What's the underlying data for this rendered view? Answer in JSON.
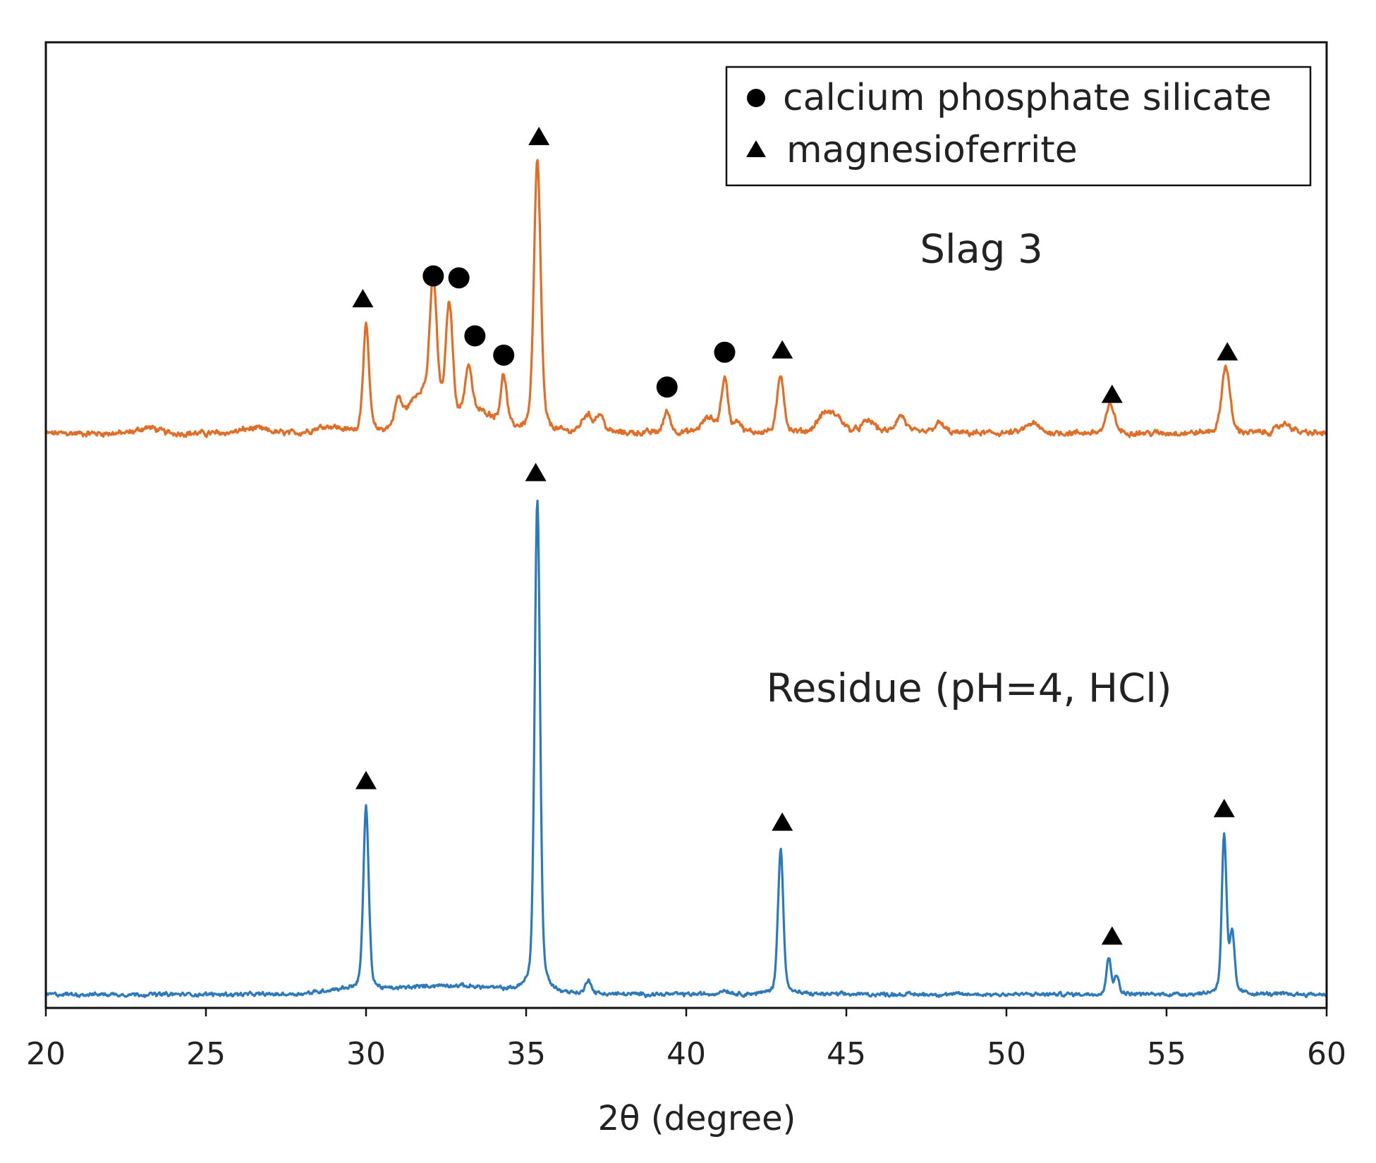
{
  "chart_data": {
    "type": "line",
    "title": "",
    "xlabel": "2θ (degree)",
    "ylabel": "",
    "xlim": [
      20,
      60
    ],
    "ylim": [
      0,
      100
    ],
    "grid": false,
    "xticks": [
      20,
      25,
      30,
      35,
      40,
      45,
      50,
      55,
      60
    ],
    "xtick_labels": [
      "20",
      "25",
      "30",
      "35",
      "40",
      "45",
      "50",
      "55",
      "60"
    ],
    "legend": {
      "placement": "top-right",
      "entries": [
        {
          "marker": "circle",
          "label": "calcium phosphate silicate"
        },
        {
          "marker": "triangle",
          "label": "magnesioferrite"
        }
      ]
    },
    "series": [
      {
        "name": "Slag 3",
        "label": "Slag 3",
        "color": "#E46C23",
        "baseline": 59.5,
        "noise": 0.45,
        "humps": [
          [
            23.2,
            0.6,
            0.3
          ],
          [
            26.5,
            0.5,
            0.4
          ],
          [
            28.8,
            0.7,
            0.4
          ],
          [
            31.8,
            4.0,
            0.5
          ],
          [
            33.5,
            2.0,
            0.6
          ]
        ],
        "peaks": [
          [
            30.0,
            11.0,
            0.09
          ],
          [
            31.0,
            2.5,
            0.1
          ],
          [
            32.1,
            12.5,
            0.1
          ],
          [
            32.6,
            11.5,
            0.1
          ],
          [
            33.2,
            5.0,
            0.1
          ],
          [
            34.3,
            5.0,
            0.09
          ],
          [
            35.35,
            28.0,
            0.1
          ],
          [
            36.9,
            1.8,
            0.15
          ],
          [
            37.3,
            1.8,
            0.12
          ],
          [
            39.4,
            2.2,
            0.1
          ],
          [
            40.7,
            1.5,
            0.2
          ],
          [
            41.2,
            5.5,
            0.1
          ],
          [
            41.6,
            1.2,
            0.1
          ],
          [
            42.95,
            6.0,
            0.1
          ],
          [
            44.3,
            1.8,
            0.2
          ],
          [
            44.7,
            1.5,
            0.2
          ],
          [
            45.7,
            1.2,
            0.2
          ],
          [
            46.7,
            1.8,
            0.15
          ],
          [
            47.9,
            1.0,
            0.15
          ],
          [
            50.8,
            1.0,
            0.2
          ],
          [
            53.25,
            3.0,
            0.12
          ],
          [
            56.85,
            7.0,
            0.12
          ],
          [
            58.7,
            1.0,
            0.2
          ]
        ]
      },
      {
        "name": "Residue (pH=4, HCl)",
        "label": "Residue (pH=4, HCl)",
        "color": "#2A7ABF",
        "baseline": 1.4,
        "noise": 0.3,
        "humps": [
          [
            32.5,
            0.9,
            1.6
          ],
          [
            29.2,
            0.4,
            0.6
          ]
        ],
        "peaks": [
          [
            30.0,
            19.0,
            0.08
          ],
          [
            35.35,
            51.0,
            0.08
          ],
          [
            36.95,
            1.5,
            0.08
          ],
          [
            41.2,
            0.4,
            0.15
          ],
          [
            42.95,
            15.0,
            0.08
          ],
          [
            53.2,
            3.8,
            0.07
          ],
          [
            53.45,
            1.8,
            0.07
          ],
          [
            56.8,
            16.5,
            0.07
          ],
          [
            57.05,
            6.0,
            0.07
          ]
        ]
      }
    ],
    "annotations": [
      {
        "marker": "triangle",
        "x": 29.9,
        "y": 73.5
      },
      {
        "marker": "circle",
        "x": 32.1,
        "y": 75.8
      },
      {
        "marker": "circle",
        "x": 32.9,
        "y": 75.6
      },
      {
        "marker": "circle",
        "x": 33.4,
        "y": 69.6
      },
      {
        "marker": "circle",
        "x": 34.3,
        "y": 67.6
      },
      {
        "marker": "triangle",
        "x": 35.4,
        "y": 90.3
      },
      {
        "marker": "circle",
        "x": 39.4,
        "y": 64.3
      },
      {
        "marker": "circle",
        "x": 41.2,
        "y": 67.9
      },
      {
        "marker": "triangle",
        "x": 43.0,
        "y": 68.2
      },
      {
        "marker": "triangle",
        "x": 53.3,
        "y": 63.6
      },
      {
        "marker": "triangle",
        "x": 56.9,
        "y": 68.0
      },
      {
        "marker": "triangle",
        "x": 35.3,
        "y": 55.5
      },
      {
        "marker": "triangle",
        "x": 30.0,
        "y": 23.6
      },
      {
        "marker": "triangle",
        "x": 43.0,
        "y": 19.3
      },
      {
        "marker": "triangle",
        "x": 53.3,
        "y": 7.5
      },
      {
        "marker": "triangle",
        "x": 56.8,
        "y": 20.7
      }
    ],
    "series_labels": [
      {
        "text": "Slag 3",
        "x": 47.3,
        "y": 77.2
      },
      {
        "text": "Residue (pH=4, HCl)",
        "x": 42.5,
        "y": 31.7
      }
    ]
  }
}
